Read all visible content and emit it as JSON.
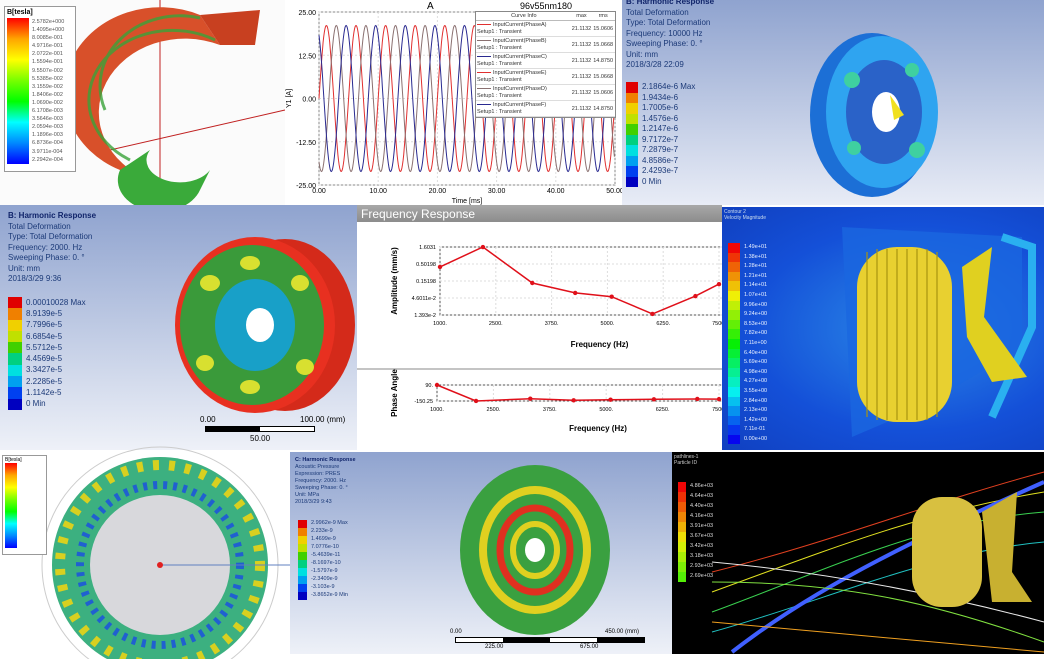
{
  "panel_coil": {
    "legend_title": "B[tesla]",
    "values": [
      "2.5782e+000",
      "1.4095e+000",
      "8.0085e-001",
      "4.9716e-001",
      "2.0722e-001",
      "1.5594e-001",
      "9.5507e-002",
      "5.5385e-002",
      "3.1559e-002",
      "1.8406e-002",
      "1.0690e-002",
      "6.1708e-003",
      "3.5646e-003",
      "2.0594e-003",
      "1.1896e-003",
      "6.8736e-004",
      "3.9711e-004",
      "2.2942e-004"
    ]
  },
  "panel_current": {
    "title": "A",
    "design": "96v55nm180",
    "ylabel": "Y1 [A]",
    "xlabel": "Time [ms]",
    "legend_headers": [
      "Curve Info",
      "max",
      "rms"
    ],
    "legend": [
      {
        "name": "InputCurrent(PhaseA)",
        "sub": "Setup1 : Transient",
        "max": "21.1132",
        "rms": "15.0606",
        "color": "#e03030"
      },
      {
        "name": "InputCurrent(PhaseB)",
        "sub": "Setup1 : Transient",
        "max": "21.1132",
        "rms": "15.0668",
        "color": "#8a7070"
      },
      {
        "name": "InputCurrent(PhaseC)",
        "sub": "Setup1 : Transient",
        "max": "21.1132",
        "rms": "14.8750",
        "color": "#2a2a90"
      },
      {
        "name": "InputCurrent(PhaseE)",
        "sub": "Setup1 : Transient",
        "max": "21.1132",
        "rms": "15.0668",
        "color": "#e03030"
      },
      {
        "name": "InputCurrent(PhaseD)",
        "sub": "Setup1 : Transient",
        "max": "21.1132",
        "rms": "15.0606",
        "color": "#8a7070"
      },
      {
        "name": "InputCurrent(PhaseF)",
        "sub": "Setup1 : Transient",
        "max": "21.1132",
        "rms": "14.8750",
        "color": "#2a2a90"
      }
    ]
  },
  "panel_wheel1": {
    "title": "B: Harmonic Response",
    "lines": [
      "Total Deformation",
      "Type: Total Deformation",
      "Frequency: 10000 Hz",
      "Sweeping Phase: 0. °",
      "Unit: mm",
      "2018/3/28 22:09"
    ],
    "values": [
      "2.1864e-6 Max",
      "1.9434e-6",
      "1.7005e-6",
      "1.4576e-6",
      "1.2147e-6",
      "9.7172e-7",
      "7.2879e-7",
      "4.8586e-7",
      "2.4293e-7",
      "0 Min"
    ]
  },
  "panel_wheel2": {
    "title": "B: Harmonic Response",
    "lines": [
      "Total Deformation",
      "Type: Total Deformation",
      "Frequency: 2000. Hz",
      "Sweeping Phase: 0. °",
      "Unit: mm",
      "2018/3/29 9:36"
    ],
    "values": [
      "0.00010028 Max",
      "8.9139e-5",
      "7.7996e-5",
      "6.6854e-5",
      "5.5712e-5",
      "4.4569e-5",
      "3.3427e-5",
      "2.2285e-5",
      "1.1142e-5",
      "0 Min"
    ],
    "scale": [
      "0.00",
      "50.00",
      "100.00 (mm)"
    ]
  },
  "panel_cfd": {
    "lines": [
      "Contour 2",
      "Velocity Magnitude"
    ],
    "values": [
      "1.49e+01",
      "1.38e+01",
      "1.28e+01",
      "1.21e+01",
      "1.14e+01",
      "1.07e+01",
      "9.96e+00",
      "9.24e+00",
      "8.53e+00",
      "7.82e+00",
      "7.11e+00",
      "6.40e+00",
      "5.69e+00",
      "4.98e+00",
      "4.27e+00",
      "3.55e+00",
      "2.84e+00",
      "2.13e+00",
      "1.42e+00",
      "7.11e-01",
      "0.00e+00"
    ]
  },
  "panel_stator": {
    "legend_title": "B[tesla]"
  },
  "panel_disc": {
    "title": "C: Harmonic Response",
    "lines": [
      "Acoustic Pressure",
      "Expression: PRES",
      "Frequency: 2000. Hz",
      "Sweeping Phase: 0. °",
      "Unit: MPa",
      "2018/3/29 9:43"
    ],
    "values": [
      "2.9962e-9 Max",
      "2.233e-9",
      "1.4699e-9",
      "7.0776e-10",
      "-5.4639e-11",
      "-8.1697e-10",
      "-1.5797e-9",
      "-2.3409e-9",
      "-3.103e-9",
      "-3.8652e-9 Min"
    ],
    "scale": [
      "0.00",
      "225.00",
      "450.00 (mm)",
      "675.00"
    ]
  },
  "panel_stream": {
    "lines": [
      "pathlines-1",
      "Particle ID"
    ],
    "values": [
      "4.86e+03",
      "4.64e+03",
      "4.40e+03",
      "4.16e+03",
      "3.91e+03",
      "3.67e+03",
      "3.42e+03",
      "3.18e+03",
      "2.93e+03",
      "2.69e+03"
    ]
  },
  "chart_data": [
    {
      "type": "line",
      "title": "A",
      "xlabel": "Time [ms]",
      "ylabel": "Y1 [A]",
      "xlim": [
        0,
        50
      ],
      "ylim": [
        -25,
        25
      ],
      "xticks": [
        "0.00",
        "10.00",
        "20.00",
        "30.00",
        "40.00",
        "50.00"
      ],
      "yticks": [
        "25.00",
        "12.50",
        "0.00",
        "-12.50",
        "-25.00"
      ],
      "grid": true,
      "legend_position": "top-right",
      "series": [
        {
          "name": "InputCurrent(PhaseA)",
          "amplitude": 21.1132,
          "period_ms": 5,
          "phase_deg": 0,
          "color": "#e03030"
        },
        {
          "name": "InputCurrent(PhaseB)",
          "amplitude": 21.1132,
          "period_ms": 5,
          "phase_deg": 120,
          "color": "#8a7070"
        },
        {
          "name": "InputCurrent(PhaseC)",
          "amplitude": 21.1132,
          "period_ms": 5,
          "phase_deg": 240,
          "color": "#2a2a90"
        }
      ]
    },
    {
      "type": "line",
      "title": "Frequency Response",
      "xlabel": "Frequency (Hz)",
      "ylabel": "Amplitude (mm/s)",
      "yscale": "log",
      "xlim": [
        1000,
        7500
      ],
      "ylim": [
        0.01393,
        1.6031
      ],
      "xticks": [
        "1000.",
        "2500.",
        "3750.",
        "5000.",
        "6250.",
        "7500."
      ],
      "yticks": [
        "1.6031",
        "0.50198",
        "0.15198",
        "4.6011e-2",
        "1.393e-2"
      ],
      "x": [
        1000,
        2000,
        3150,
        4150,
        5000,
        5950,
        6950,
        7500
      ],
      "y": [
        0.4,
        1.6,
        0.13,
        0.065,
        0.05,
        0.015,
        0.052,
        0.12
      ],
      "color": "#e0101a",
      "grid": true
    },
    {
      "type": "line",
      "xlabel": "Frequency (Hz)",
      "ylabel": "Phase Angle",
      "xlim": [
        1000,
        7500
      ],
      "ylim": [
        -150.25,
        90
      ],
      "xticks": [
        "1000.",
        "2500.",
        "3750.",
        "5000.",
        "6250.",
        "7500."
      ],
      "yticks": [
        "90.",
        "-150.25"
      ],
      "x": [
        1000,
        1900,
        3150,
        4150,
        5000,
        6000,
        7000,
        7500
      ],
      "y": [
        90,
        -150,
        -115,
        -140,
        -130,
        -125,
        -120,
        -122
      ],
      "color": "#e0101a"
    }
  ]
}
